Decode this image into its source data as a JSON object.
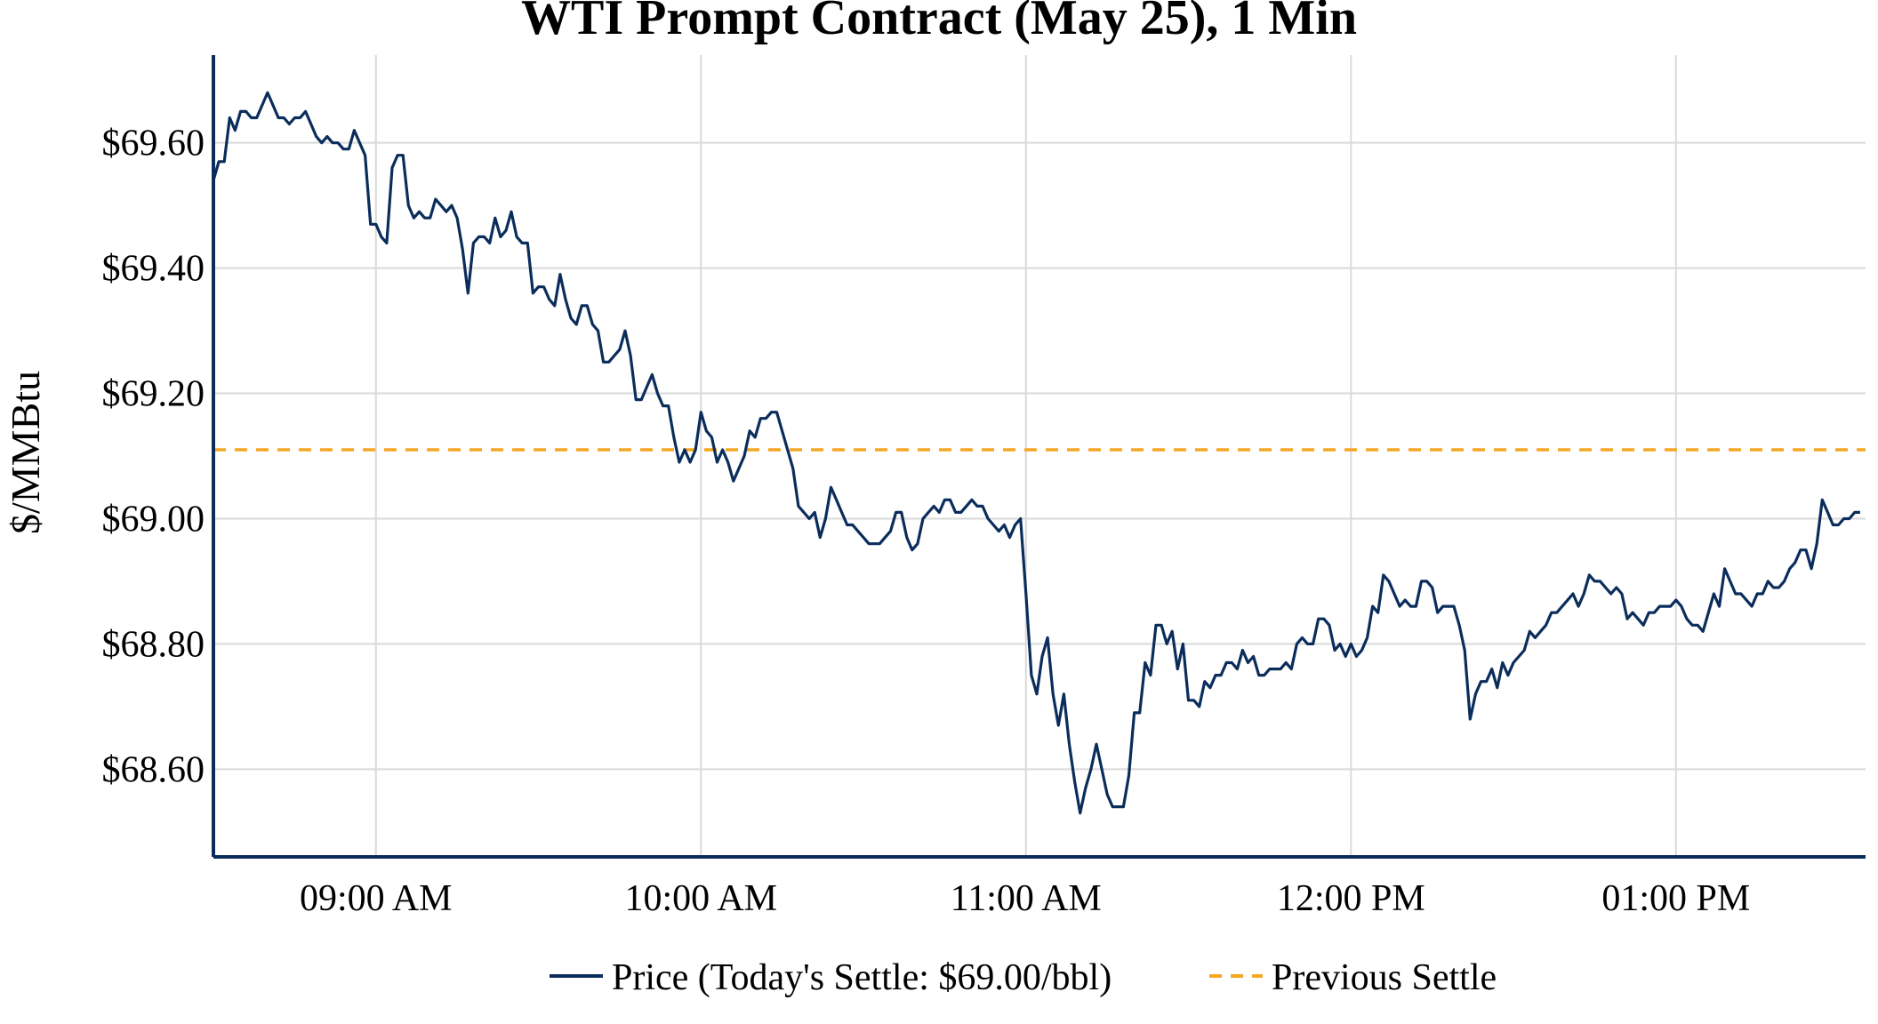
{
  "chart_data": {
    "type": "line",
    "title": "WTI Prompt Contract (May 25), 1 Min",
    "ylabel": "$/MMBtu",
    "xlabel": "",
    "x_range": [
      "08:30",
      "13:35"
    ],
    "ylim": [
      68.46,
      69.74
    ],
    "x_ticks": [
      {
        "t": "09:00",
        "label": "09:00 AM"
      },
      {
        "t": "10:00",
        "label": "10:00 AM"
      },
      {
        "t": "11:00",
        "label": "11:00 AM"
      },
      {
        "t": "12:00",
        "label": "12:00 PM"
      },
      {
        "t": "13:00",
        "label": "01:00 PM"
      }
    ],
    "y_ticks": [
      {
        "v": 68.6,
        "label": "$68.60"
      },
      {
        "v": 68.8,
        "label": "$68.80"
      },
      {
        "v": 69.0,
        "label": "$69.00"
      },
      {
        "v": 69.2,
        "label": "$69.20"
      },
      {
        "v": 69.4,
        "label": "$69.40"
      },
      {
        "v": 69.6,
        "label": "$69.60"
      }
    ],
    "grid": true,
    "legend_position": "bottom",
    "series": [
      {
        "name": "Price (Today's Settle: $69.00/bbl)",
        "color": "#0b2d5b",
        "style": "solid",
        "x_start": "08:30",
        "x_step_minutes": 1,
        "values": [
          69.54,
          69.57,
          69.57,
          69.64,
          69.62,
          69.65,
          69.65,
          69.64,
          69.64,
          69.66,
          69.68,
          69.66,
          69.64,
          69.64,
          69.63,
          69.64,
          69.64,
          69.65,
          69.63,
          69.61,
          69.6,
          69.61,
          69.6,
          69.6,
          69.59,
          69.59,
          69.62,
          69.6,
          69.58,
          69.47,
          69.47,
          69.45,
          69.44,
          69.56,
          69.58,
          69.58,
          69.5,
          69.48,
          69.49,
          69.48,
          69.48,
          69.51,
          69.5,
          69.49,
          69.5,
          69.48,
          69.43,
          69.36,
          69.44,
          69.45,
          69.45,
          69.44,
          69.48,
          69.45,
          69.46,
          69.49,
          69.45,
          69.44,
          69.44,
          69.36,
          69.37,
          69.37,
          69.35,
          69.34,
          69.39,
          69.35,
          69.32,
          69.31,
          69.34,
          69.34,
          69.31,
          69.3,
          69.25,
          69.25,
          69.26,
          69.27,
          69.3,
          69.26,
          69.19,
          69.19,
          69.21,
          69.23,
          69.2,
          69.18,
          69.18,
          69.13,
          69.09,
          69.11,
          69.09,
          69.11,
          69.17,
          69.14,
          69.13,
          69.09,
          69.11,
          69.09,
          69.06,
          69.08,
          69.1,
          69.14,
          69.13,
          69.16,
          69.16,
          69.17,
          69.17,
          69.14,
          69.11,
          69.08,
          69.02,
          69.01,
          69.0,
          69.01,
          68.97,
          69.0,
          69.05,
          69.03,
          69.01,
          68.99,
          68.99,
          68.98,
          68.97,
          68.96,
          68.96,
          68.96,
          68.97,
          68.98,
          69.01,
          69.01,
          68.97,
          68.95,
          68.96,
          69.0,
          69.01,
          69.02,
          69.01,
          69.03,
          69.03,
          69.01,
          69.01,
          69.02,
          69.03,
          69.02,
          69.02,
          69.0,
          68.99,
          68.98,
          68.99,
          68.97,
          68.99,
          69.0,
          68.88,
          68.75,
          68.72,
          68.78,
          68.81,
          68.72,
          68.67,
          68.72,
          68.64,
          68.58,
          68.53,
          68.57,
          68.6,
          68.64,
          68.6,
          68.56,
          68.54,
          68.54,
          68.54,
          68.59,
          68.69,
          68.69,
          68.77,
          68.75,
          68.83,
          68.83,
          68.8,
          68.82,
          68.76,
          68.8,
          68.71,
          68.71,
          68.7,
          68.74,
          68.73,
          68.75,
          68.75,
          68.77,
          68.77,
          68.76,
          68.79,
          68.77,
          68.78,
          68.75,
          68.75,
          68.76,
          68.76,
          68.76,
          68.77,
          68.76,
          68.8,
          68.81,
          68.8,
          68.8,
          68.84,
          68.84,
          68.83,
          68.79,
          68.8,
          68.78,
          68.8,
          68.78,
          68.79,
          68.81,
          68.86,
          68.85,
          68.91,
          68.9,
          68.88,
          68.86,
          68.87,
          68.86,
          68.86,
          68.9,
          68.9,
          68.89,
          68.85,
          68.86,
          68.86,
          68.86,
          68.83,
          68.79,
          68.68,
          68.72,
          68.74,
          68.74,
          68.76,
          68.73,
          68.77,
          68.75,
          68.77,
          68.78,
          68.79,
          68.82,
          68.81,
          68.82,
          68.83,
          68.85,
          68.85,
          68.86,
          68.87,
          68.88,
          68.86,
          68.88,
          68.91,
          68.9,
          68.9,
          68.89,
          68.88,
          68.89,
          68.88,
          68.84,
          68.85,
          68.84,
          68.83,
          68.85,
          68.85,
          68.86,
          68.86,
          68.86,
          68.87,
          68.86,
          68.84,
          68.83,
          68.83,
          68.82,
          68.85,
          68.88,
          68.86,
          68.92,
          68.9,
          68.88,
          68.88,
          68.87,
          68.86,
          68.88,
          68.88,
          68.9,
          68.89,
          68.89,
          68.9,
          68.92,
          68.93,
          68.95,
          68.95,
          68.92,
          68.96,
          69.03,
          69.01,
          68.99,
          68.99,
          69.0,
          69.0,
          69.01,
          69.01
        ]
      },
      {
        "name": "Previous Settle",
        "color": "#f5a623",
        "style": "dashed",
        "constant_value": 69.11
      }
    ]
  }
}
